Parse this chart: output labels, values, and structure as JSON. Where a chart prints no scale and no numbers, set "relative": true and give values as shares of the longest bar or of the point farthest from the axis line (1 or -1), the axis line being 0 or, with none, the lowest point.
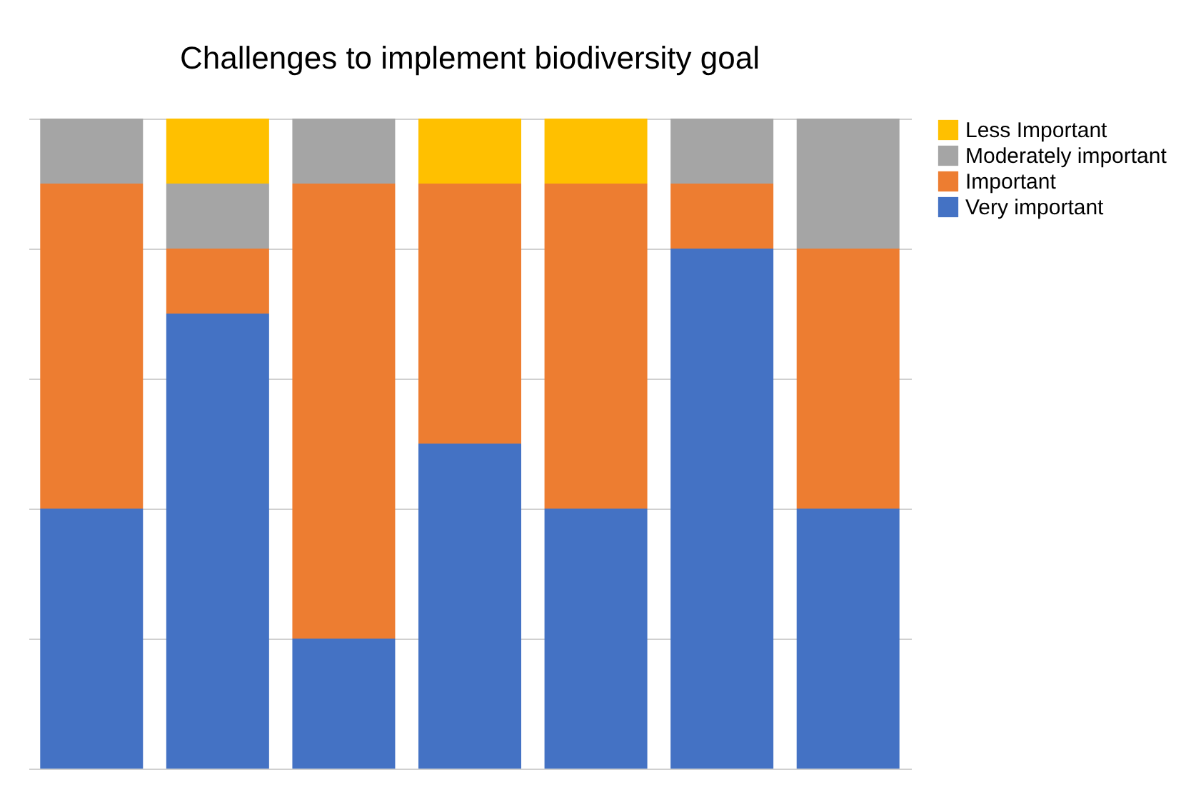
{
  "chart_data": {
    "type": "bar",
    "title": "Challenges to implement biodiversity goal",
    "categories": [
      null,
      null,
      null,
      null,
      null,
      null,
      null
    ],
    "stacked": true,
    "relative": true,
    "grid": "y",
    "legend": "right",
    "series": [
      {
        "name": "Very important",
        "color": "#4472c4",
        "values": [
          0.4,
          0.7,
          0.2,
          0.5,
          0.4,
          0.8,
          0.4
        ]
      },
      {
        "name": "Important",
        "color": "#ed7d31",
        "values": [
          0.5,
          0.1,
          0.7,
          0.4,
          0.5,
          0.1,
          0.4
        ]
      },
      {
        "name": "Moderately important",
        "color": "#a5a5a5",
        "values": [
          0.1,
          0.1,
          0.1,
          null,
          null,
          0.1,
          0.2
        ]
      },
      {
        "name": "Less  Important",
        "color": "#ffc000",
        "values": [
          null,
          0.1,
          null,
          0.1,
          0.1,
          null,
          null
        ]
      }
    ]
  }
}
